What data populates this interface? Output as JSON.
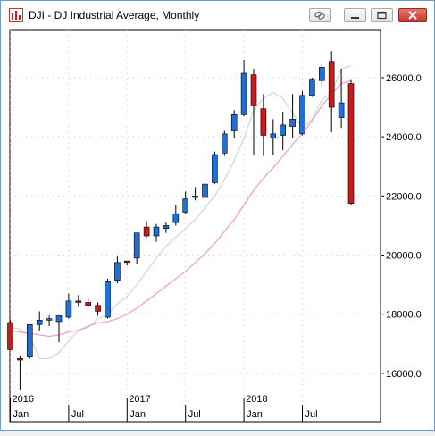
{
  "window": {
    "title": "DJI - DJ Industrial Average, Monthly",
    "icons": [
      "app-chart-icon",
      "link-icon",
      "minimize-icon",
      "maximize-icon",
      "close-icon"
    ]
  },
  "chart_data": {
    "type": "candlestick",
    "title": "DJI - DJ Industrial Average, Monthly",
    "xlabel": "",
    "ylabel": "",
    "ylim": [
      15000,
      27600
    ],
    "y_ticks": [
      "26000.0",
      "24000.0",
      "22000.0",
      "20000.0",
      "18000.0",
      "16000.0"
    ],
    "y_tick_values": [
      26000,
      24000,
      22000,
      20000,
      18000,
      16000
    ],
    "year_labels": [
      {
        "label": "2016",
        "index": 0
      },
      {
        "label": "2017",
        "index": 12
      },
      {
        "label": "2018",
        "index": 24
      }
    ],
    "month_labels": [
      {
        "label": "Jan",
        "index": 0
      },
      {
        "label": "Jul",
        "index": 6
      },
      {
        "label": "Jan",
        "index": 12
      },
      {
        "label": "Jul",
        "index": 18
      },
      {
        "label": "Jan",
        "index": 24
      },
      {
        "label": "Jul",
        "index": 30
      }
    ],
    "colors": {
      "up": "#1f6fd6",
      "down": "#cc1a1a",
      "ma_short": "#c6e2c6",
      "ma_long": "#f4a0c8",
      "grid": "#c8c8c8"
    },
    "candles": [
      {
        "date": "2015-12",
        "o": 17720,
        "h": 17800,
        "l": 16900,
        "c": 16800
      },
      {
        "date": "2016-01",
        "o": 16500,
        "h": 16600,
        "l": 15450,
        "c": 16450
      },
      {
        "date": "2016-02",
        "o": 16550,
        "h": 17650,
        "l": 16500,
        "c": 17650
      },
      {
        "date": "2016-03",
        "o": 17650,
        "h": 18100,
        "l": 17450,
        "c": 17800
      },
      {
        "date": "2016-04",
        "o": 17800,
        "h": 17950,
        "l": 17600,
        "c": 17850
      },
      {
        "date": "2016-05",
        "o": 17750,
        "h": 17950,
        "l": 17050,
        "c": 17950
      },
      {
        "date": "2016-06",
        "o": 17900,
        "h": 18700,
        "l": 17850,
        "c": 18450
      },
      {
        "date": "2016-07",
        "o": 18450,
        "h": 18650,
        "l": 18250,
        "c": 18400
      },
      {
        "date": "2016-08",
        "o": 18400,
        "h": 18550,
        "l": 18250,
        "c": 18300
      },
      {
        "date": "2016-09",
        "o": 18300,
        "h": 18400,
        "l": 17950,
        "c": 18100
      },
      {
        "date": "2016-10",
        "o": 17900,
        "h": 19200,
        "l": 17850,
        "c": 19100
      },
      {
        "date": "2016-11",
        "o": 19150,
        "h": 19950,
        "l": 19050,
        "c": 19750
      },
      {
        "date": "2016-12",
        "o": 19800,
        "h": 19800,
        "l": 19650,
        "c": 19750
      },
      {
        "date": "2017-01",
        "o": 19900,
        "h": 20750,
        "l": 19700,
        "c": 20750
      },
      {
        "date": "2017-02",
        "o": 20950,
        "h": 21150,
        "l": 20600,
        "c": 20650
      },
      {
        "date": "2017-03",
        "o": 20650,
        "h": 21050,
        "l": 20450,
        "c": 20950
      },
      {
        "date": "2017-04",
        "o": 20900,
        "h": 21100,
        "l": 20750,
        "c": 21000
      },
      {
        "date": "2017-05",
        "o": 21100,
        "h": 21700,
        "l": 21000,
        "c": 21400
      },
      {
        "date": "2017-06",
        "o": 21450,
        "h": 22150,
        "l": 21400,
        "c": 21900
      },
      {
        "date": "2017-07",
        "o": 21950,
        "h": 22300,
        "l": 21850,
        "c": 22000
      },
      {
        "date": "2017-08",
        "o": 21950,
        "h": 22450,
        "l": 21850,
        "c": 22400
      },
      {
        "date": "2017-09",
        "o": 22450,
        "h": 23500,
        "l": 22400,
        "c": 23400
      },
      {
        "date": "2017-10",
        "o": 23450,
        "h": 24200,
        "l": 23350,
        "c": 24100
      },
      {
        "date": "2017-11",
        "o": 24200,
        "h": 24900,
        "l": 23950,
        "c": 24750
      },
      {
        "date": "2017-12",
        "o": 24750,
        "h": 26600,
        "l": 24700,
        "c": 26150
      },
      {
        "date": "2018-01",
        "o": 26100,
        "h": 26300,
        "l": 23400,
        "c": 25050
      },
      {
        "date": "2018-02",
        "o": 24950,
        "h": 25450,
        "l": 23350,
        "c": 24050
      },
      {
        "date": "2018-03",
        "o": 23950,
        "h": 24600,
        "l": 23400,
        "c": 24100
      },
      {
        "date": "2018-04",
        "o": 24050,
        "h": 24850,
        "l": 23550,
        "c": 24400
      },
      {
        "date": "2018-05",
        "o": 24350,
        "h": 25450,
        "l": 23950,
        "c": 24600
      },
      {
        "date": "2018-06",
        "o": 24100,
        "h": 25550,
        "l": 24050,
        "c": 25400
      },
      {
        "date": "2018-07",
        "o": 25400,
        "h": 26000,
        "l": 25350,
        "c": 25950
      },
      {
        "date": "2018-08",
        "o": 25900,
        "h": 26450,
        "l": 25700,
        "c": 26350
      },
      {
        "date": "2018-09",
        "o": 26550,
        "h": 26900,
        "l": 24150,
        "c": 25000
      },
      {
        "date": "2018-10",
        "o": 24650,
        "h": 26300,
        "l": 24300,
        "c": 25150
      },
      {
        "date": "2018-11",
        "o": 25800,
        "h": 25950,
        "l": 21700,
        "c": 21750
      }
    ],
    "series": [
      {
        "type": "line",
        "values": [
          17550,
          17500,
          17250,
          16500,
          16500,
          16700,
          17100,
          17450,
          17550,
          17850,
          18000,
          18350,
          18600,
          19000,
          19450,
          19900,
          20300,
          20600,
          20900,
          21200,
          21600,
          22000,
          22550,
          23200,
          23950,
          24900,
          25300,
          25500,
          25300,
          24800,
          24300,
          24600,
          25250,
          25500,
          26300,
          26400
        ]
      },
      {
        "type": "line",
        "values": [
          17450,
          17400,
          17350,
          17300,
          17250,
          17300,
          17400,
          17450,
          17600,
          17700,
          17750,
          17850,
          18000,
          18200,
          18450,
          18700,
          18950,
          19200,
          19450,
          19750,
          20050,
          20400,
          20800,
          21200,
          21700,
          22200,
          22600,
          22950,
          23350,
          23750,
          24100,
          24550,
          25050,
          25450,
          25800,
          25900
        ]
      }
    ]
  }
}
